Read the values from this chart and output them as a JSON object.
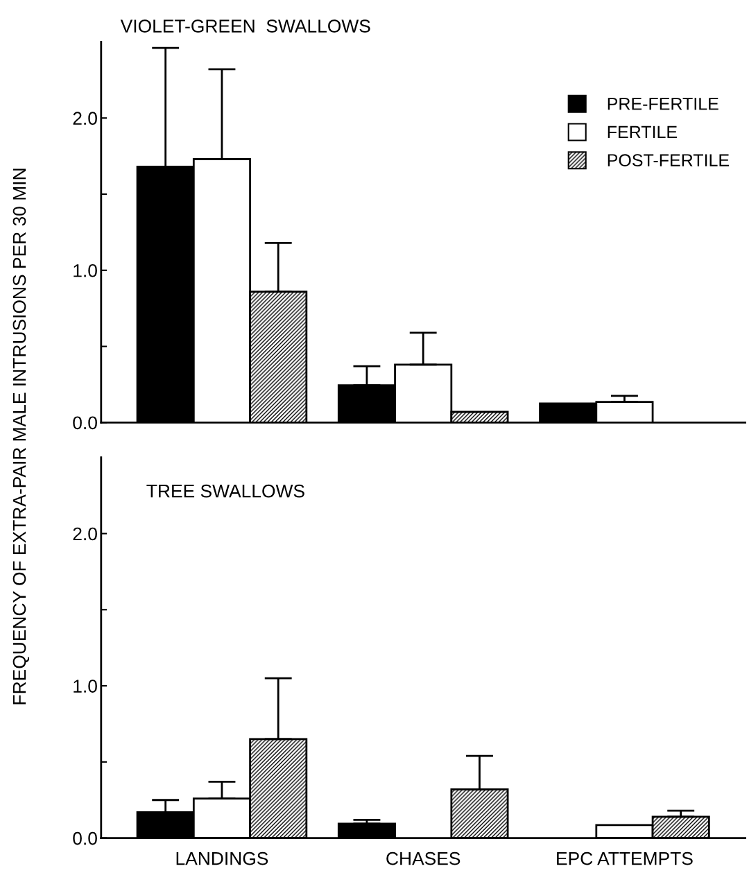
{
  "chart_data": [
    {
      "type": "bar",
      "title": "VIOLET-GREEN  SWALLOWS",
      "ylabel": "FREQUENCY OF EXTRA-PAIR MALE INTRUSIONS PER 30 MIN",
      "categories": [
        null,
        null,
        null
      ],
      "ylim": [
        0,
        2.5
      ],
      "yticks": [
        {
          "value": 0,
          "label": "0.0"
        },
        {
          "value": 0.5,
          "label": null
        },
        {
          "value": 1,
          "label": "1.0"
        },
        {
          "value": 1.5,
          "label": null
        },
        {
          "value": 2,
          "label": "2.0"
        }
      ],
      "tick_labels": "y",
      "legend": "top right",
      "grid": false,
      "series": [
        {
          "name": "PRE-FERTILE",
          "color": "#000000",
          "values": [
            1.68,
            0.245,
            0.125
          ],
          "errors": [
            [
              1.68,
              2.46
            ],
            [
              0.245,
              0.37
            ],
            null
          ]
        },
        {
          "name": "FERTILE",
          "color": "#ffffff",
          "values": [
            1.73,
            0.38,
            0.135
          ],
          "errors": [
            [
              1.73,
              2.32
            ],
            [
              0.38,
              0.59
            ],
            [
              0.135,
              0.175
            ]
          ]
        },
        {
          "name": "POST-FERTILE",
          "color": "#000000",
          "values": [
            0.86,
            0.07,
            null
          ],
          "errors": [
            [
              0.86,
              1.18
            ],
            null,
            null
          ]
        }
      ]
    },
    {
      "type": "bar",
      "title": "TREE SWALLOWS",
      "categories": [
        "LANDINGS",
        "CHASES",
        "EPC ATTEMPTS"
      ],
      "ylim": [
        0,
        2.5
      ],
      "yticks": [
        {
          "value": 0,
          "label": "0.0"
        },
        {
          "value": 0.5,
          "label": null
        },
        {
          "value": 1,
          "label": "1.0"
        },
        {
          "value": 1.5,
          "label": null
        },
        {
          "value": 2,
          "label": "2.0"
        }
      ],
      "grid": false,
      "series": [
        {
          "color": "#000000",
          "values": [
            0.17,
            0.095,
            null
          ],
          "errors": [
            [
              0.17,
              0.25
            ],
            [
              0.095,
              0.12
            ],
            null
          ]
        },
        {
          "color": "#ffffff",
          "values": [
            0.26,
            null,
            0.085
          ],
          "errors": [
            [
              0.26,
              0.37
            ],
            null,
            null
          ]
        },
        {
          "color": "#000000",
          "values": [
            0.65,
            0.32,
            0.14
          ],
          "errors": [
            [
              0.65,
              1.05
            ],
            [
              0.32,
              0.54
            ],
            [
              0.14,
              0.18
            ]
          ]
        }
      ]
    }
  ]
}
